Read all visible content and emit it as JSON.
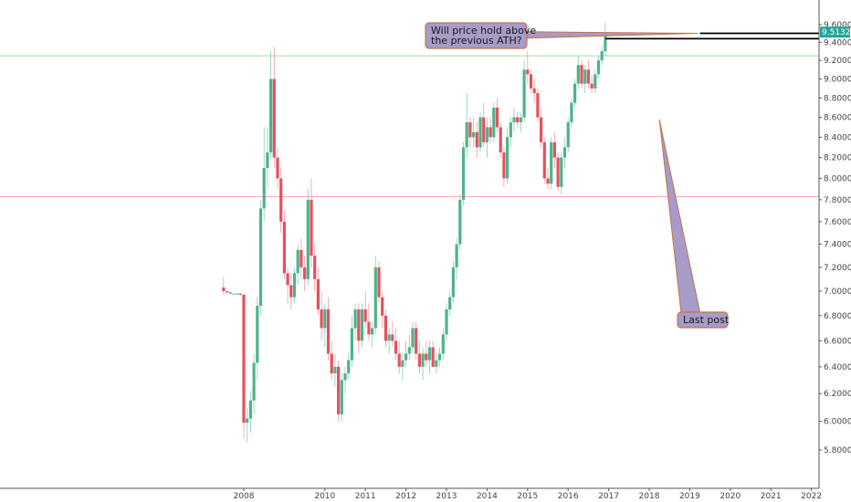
{
  "chart_data": {
    "type": "candlestick",
    "title": "",
    "scale": "log",
    "ylim": [
      5.65,
      9.68
    ],
    "y_ticks": [
      "9.60000",
      "9.40000",
      "9.20000",
      "9.00000",
      "8.80000",
      "8.60000",
      "8.40000",
      "8.20000",
      "8.00000",
      "7.80000",
      "7.60000",
      "7.40000",
      "7.20000",
      "7.00000",
      "6.80000",
      "6.60000",
      "6.40000",
      "6.20000",
      "6.00000",
      "5.80000"
    ],
    "x_ticks": [
      "2008",
      "2010",
      "2011",
      "2012",
      "2013",
      "2014",
      "2015",
      "2016",
      "2017",
      "2018",
      "2019",
      "2020",
      "2021",
      "2022"
    ],
    "x_tick_dates": [
      2008.0,
      2010.0,
      2011.0,
      2012.0,
      2013.0,
      2014.0,
      2015.0,
      2016.0,
      2017.0,
      2018.0,
      2019.0,
      2020.0,
      2021.0,
      2022.0
    ],
    "start_date": 2007.5,
    "period_months": 1,
    "current_price_label": "9.51327",
    "grid": false,
    "colors": {
      "up": "#4db38a",
      "down": "#e5515d",
      "wick_up": "#86cfb0",
      "wick_down": "#f19aa1",
      "price_badge": "#26a69a"
    },
    "horizontal_lines": [
      {
        "value": 9.25,
        "color": "#a6d9a6"
      },
      {
        "value": 7.83,
        "color": "#f4a3a3"
      }
    ],
    "ath_lines": [
      {
        "value": 9.5,
        "from_date": 2019.25,
        "color": "#000000"
      },
      {
        "value": 9.44,
        "from_date": 2016.92,
        "color": "#000000"
      }
    ],
    "annotations": [
      {
        "id": "ath-question",
        "lines": [
          "Will price hold above",
          "the previous ATH?"
        ],
        "pointer_date": 2019.2,
        "pointer_value": 9.5
      },
      {
        "id": "last-post",
        "lines": [
          "Last post"
        ],
        "pointer_date": 2018.25,
        "pointer_value": 8.58
      }
    ],
    "series": [
      {
        "ohlc": [
          [
            7.03,
            7.12,
            6.97,
            7.0
          ],
          [
            7.0,
            7.0,
            6.98,
            6.99
          ],
          [
            6.99,
            6.99,
            6.98,
            6.98
          ],
          [
            6.98,
            6.98,
            6.98,
            6.98
          ],
          [
            6.98,
            6.98,
            6.97,
            6.98
          ],
          [
            6.98,
            6.98,
            6.97,
            6.97
          ],
          [
            6.97,
            6.98,
            5.88,
            5.99
          ],
          [
            5.99,
            6.1,
            5.85,
            6.02
          ],
          [
            6.02,
            6.22,
            5.92,
            6.15
          ],
          [
            6.15,
            6.5,
            6.05,
            6.43
          ],
          [
            6.43,
            6.95,
            6.3,
            6.88
          ],
          [
            6.88,
            7.8,
            6.8,
            7.72
          ],
          [
            7.72,
            8.5,
            7.6,
            8.1
          ],
          [
            8.1,
            8.5,
            7.9,
            8.25
          ],
          [
            8.25,
            9.3,
            8.2,
            9.0
          ],
          [
            9.0,
            9.35,
            8.1,
            8.2
          ],
          [
            8.2,
            8.3,
            7.9,
            8.0
          ],
          [
            8.0,
            8.1,
            7.5,
            7.6
          ],
          [
            7.6,
            7.7,
            7.1,
            7.15
          ],
          [
            7.15,
            7.2,
            6.9,
            7.05
          ],
          [
            7.05,
            7.15,
            6.85,
            6.95
          ],
          [
            6.95,
            7.2,
            6.9,
            7.15
          ],
          [
            7.15,
            7.4,
            7.05,
            7.35
          ],
          [
            7.35,
            7.45,
            7.1,
            7.2
          ],
          [
            7.2,
            7.3,
            7.0,
            7.1
          ],
          [
            7.1,
            7.9,
            7.05,
            7.8
          ],
          [
            7.8,
            8.0,
            7.2,
            7.3
          ],
          [
            7.3,
            7.4,
            7.0,
            7.1
          ],
          [
            7.1,
            7.2,
            6.8,
            6.85
          ],
          [
            6.85,
            7.0,
            6.6,
            6.7
          ],
          [
            6.7,
            6.9,
            6.55,
            6.85
          ],
          [
            6.85,
            6.95,
            6.45,
            6.5
          ],
          [
            6.5,
            6.6,
            6.3,
            6.35
          ],
          [
            6.35,
            6.5,
            6.25,
            6.4
          ],
          [
            6.4,
            6.45,
            6.0,
            6.05
          ],
          [
            6.05,
            6.35,
            6.0,
            6.3
          ],
          [
            6.3,
            6.4,
            6.2,
            6.35
          ],
          [
            6.35,
            6.5,
            6.3,
            6.45
          ],
          [
            6.45,
            6.8,
            6.4,
            6.7
          ],
          [
            6.7,
            6.9,
            6.6,
            6.85
          ],
          [
            6.85,
            6.9,
            6.5,
            6.6
          ],
          [
            6.6,
            6.9,
            6.55,
            6.85
          ],
          [
            6.85,
            7.0,
            6.7,
            6.75
          ],
          [
            6.75,
            6.9,
            6.6,
            6.65
          ],
          [
            6.65,
            6.75,
            6.55,
            6.7
          ],
          [
            6.7,
            7.3,
            6.65,
            7.2
          ],
          [
            7.2,
            7.25,
            6.9,
            6.95
          ],
          [
            6.95,
            7.0,
            6.7,
            6.8
          ],
          [
            6.8,
            6.85,
            6.55,
            6.6
          ],
          [
            6.6,
            6.7,
            6.5,
            6.65
          ],
          [
            6.65,
            6.75,
            6.55,
            6.6
          ],
          [
            6.6,
            6.7,
            6.45,
            6.5
          ],
          [
            6.5,
            6.6,
            6.35,
            6.4
          ],
          [
            6.4,
            6.5,
            6.3,
            6.45
          ],
          [
            6.45,
            6.6,
            6.4,
            6.5
          ],
          [
            6.5,
            6.65,
            6.45,
            6.55
          ],
          [
            6.55,
            6.75,
            6.5,
            6.7
          ],
          [
            6.7,
            6.75,
            6.45,
            6.5
          ],
          [
            6.5,
            6.6,
            6.35,
            6.4
          ],
          [
            6.4,
            6.55,
            6.3,
            6.5
          ],
          [
            6.5,
            6.6,
            6.4,
            6.45
          ],
          [
            6.45,
            6.6,
            6.35,
            6.55
          ],
          [
            6.55,
            6.6,
            6.4,
            6.4
          ],
          [
            6.4,
            6.5,
            6.35,
            6.45
          ],
          [
            6.45,
            6.55,
            6.4,
            6.5
          ],
          [
            6.5,
            6.7,
            6.45,
            6.65
          ],
          [
            6.65,
            6.9,
            6.6,
            6.85
          ],
          [
            6.85,
            7.0,
            6.8,
            6.95
          ],
          [
            6.95,
            7.25,
            6.9,
            7.2
          ],
          [
            7.2,
            7.45,
            7.1,
            7.4
          ],
          [
            7.4,
            7.85,
            7.35,
            7.8
          ],
          [
            7.8,
            8.35,
            7.75,
            8.3
          ],
          [
            8.3,
            8.85,
            8.2,
            8.55
          ],
          [
            8.55,
            8.6,
            8.3,
            8.4
          ],
          [
            8.4,
            8.6,
            8.3,
            8.45
          ],
          [
            8.45,
            8.55,
            8.2,
            8.3
          ],
          [
            8.3,
            8.65,
            8.25,
            8.6
          ],
          [
            8.6,
            8.75,
            8.3,
            8.35
          ],
          [
            8.35,
            8.6,
            8.2,
            8.5
          ],
          [
            8.5,
            8.6,
            8.35,
            8.4
          ],
          [
            8.4,
            8.75,
            8.35,
            8.7
          ],
          [
            8.7,
            8.8,
            8.45,
            8.5
          ],
          [
            8.5,
            8.55,
            8.2,
            8.25
          ],
          [
            8.25,
            8.3,
            7.92,
            8.0
          ],
          [
            8.0,
            8.5,
            7.95,
            8.4
          ],
          [
            8.4,
            8.6,
            8.3,
            8.55
          ],
          [
            8.55,
            8.7,
            8.45,
            8.6
          ],
          [
            8.6,
            8.65,
            8.5,
            8.55
          ],
          [
            8.55,
            8.65,
            8.45,
            8.6
          ],
          [
            8.6,
            9.2,
            8.55,
            9.1
          ],
          [
            9.1,
            9.3,
            8.95,
            9.05
          ],
          [
            9.05,
            9.1,
            8.85,
            8.9
          ],
          [
            8.9,
            9.0,
            8.75,
            8.85
          ],
          [
            8.85,
            8.9,
            8.55,
            8.6
          ],
          [
            8.6,
            8.7,
            8.3,
            8.35
          ],
          [
            8.35,
            8.4,
            7.95,
            8.0
          ],
          [
            8.0,
            8.1,
            7.9,
            7.95
          ],
          [
            7.95,
            8.4,
            7.9,
            8.35
          ],
          [
            8.35,
            8.45,
            8.1,
            8.2
          ],
          [
            8.2,
            8.25,
            7.88,
            7.92
          ],
          [
            7.92,
            8.25,
            7.85,
            8.2
          ],
          [
            8.2,
            8.4,
            8.1,
            8.3
          ],
          [
            8.3,
            8.6,
            8.25,
            8.55
          ],
          [
            8.55,
            8.8,
            8.5,
            8.75
          ],
          [
            8.75,
            9.0,
            8.7,
            8.95
          ],
          [
            8.95,
            9.25,
            8.9,
            9.15
          ],
          [
            9.15,
            9.2,
            8.9,
            8.95
          ],
          [
            8.95,
            9.15,
            8.85,
            9.1
          ],
          [
            9.1,
            9.2,
            8.9,
            8.95
          ],
          [
            8.95,
            9.05,
            8.85,
            8.9
          ],
          [
            8.9,
            9.1,
            8.85,
            9.05
          ],
          [
            9.05,
            9.25,
            9.0,
            9.2
          ],
          [
            9.2,
            9.35,
            9.15,
            9.3
          ],
          [
            9.3,
            9.62,
            9.25,
            9.51
          ]
        ]
      }
    ]
  }
}
